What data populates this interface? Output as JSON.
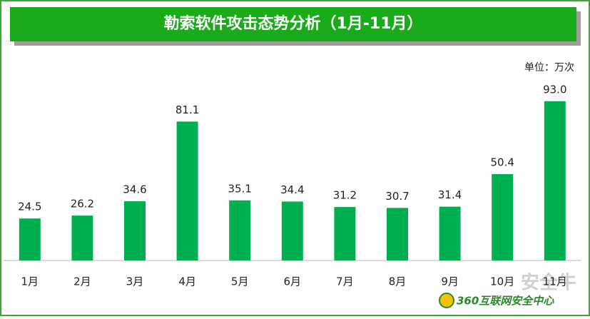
{
  "chart_data": {
    "type": "bar",
    "title": "勒索软件攻击态势分析（1月-11月）",
    "unit_label": "单位：万次",
    "categories": [
      "1月",
      "2月",
      "3月",
      "4月",
      "5月",
      "6月",
      "7月",
      "8月",
      "9月",
      "10月",
      "11月"
    ],
    "values": [
      24.5,
      26.2,
      34.6,
      81.1,
      35.1,
      34.4,
      31.2,
      30.7,
      31.4,
      50.4,
      93.0
    ],
    "value_labels": [
      "24.5",
      "26.2",
      "34.6",
      "81.1",
      "35.1",
      "34.4",
      "31.2",
      "30.7",
      "31.4",
      "50.4",
      "93.0"
    ],
    "color": "#00b050",
    "source": "360互联网安全中心",
    "watermark": "安全牛"
  }
}
